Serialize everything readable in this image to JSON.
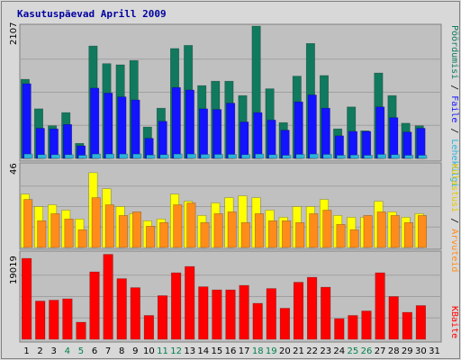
{
  "chart_data": {
    "type": "bar",
    "title": "Kasutuspäevad Aprill 2009",
    "categories": [
      "1",
      "2",
      "3",
      "4",
      "5",
      "6",
      "7",
      "8",
      "9",
      "10",
      "11",
      "12",
      "13",
      "14",
      "15",
      "16",
      "17",
      "18",
      "19",
      "20",
      "21",
      "22",
      "23",
      "24",
      "25",
      "26",
      "27",
      "28",
      "29",
      "30",
      "31"
    ],
    "weekend_days": [
      "4",
      "5",
      "11",
      "12",
      "18",
      "19",
      "25",
      "26"
    ],
    "ranges": {
      "top_max": 2107,
      "middle_max": 46,
      "bottom_max": 19019
    },
    "panels": [
      {
        "id": "top",
        "ymax_label": "2107",
        "ylim": [
          0,
          2107
        ],
        "series": [
          {
            "name": "Pöördumisi",
            "color": "#11795d",
            "values": [
              1260,
              790,
              520,
              730,
              240,
              1790,
              1510,
              1490,
              1560,
              500,
              800,
              1750,
              1800,
              1160,
              1230,
              1230,
              1000,
              2107,
              1110,
              570,
              1310,
              1830,
              1320,
              470,
              820,
              440,
              1360,
              1000,
              560,
              520,
              0
            ]
          },
          {
            "name": "Faile",
            "color": "#1313ff",
            "values": [
              1190,
              480,
              470,
              540,
              200,
              1120,
              1040,
              980,
              930,
              320,
              590,
              1130,
              1090,
              790,
              780,
              880,
              580,
              730,
              610,
              450,
              900,
              1010,
              800,
              360,
              430,
              430,
              820,
              650,
              420,
              480,
              0
            ]
          },
          {
            "name": "Lehekülgi",
            "color": "#2db3db",
            "values": [
              70,
              60,
              60,
              60,
              50,
              70,
              70,
              70,
              70,
              55,
              60,
              70,
              70,
              65,
              65,
              65,
              60,
              70,
              60,
              50,
              65,
              70,
              65,
              50,
              55,
              50,
              65,
              60,
              50,
              50,
              0
            ]
          }
        ]
      },
      {
        "id": "middle",
        "ymax_label": "46",
        "ylim": [
          0,
          46
        ],
        "series": [
          {
            "name": "Külastusi",
            "color": "#ffff00",
            "values": [
              30,
              23,
              24,
              21,
              16,
              42,
              33,
              23,
              19,
              15,
              16,
              30,
              26,
              18,
              25,
              28,
              29,
              28,
              21,
              17,
              23,
              23,
              27,
              18,
              17,
              17,
              26,
              20,
              17,
              19,
              0
            ]
          },
          {
            "name": "Arvuteid",
            "color": "#ff8c1a",
            "values": [
              27,
              15,
              19,
              16,
              10,
              28,
              24,
              18,
              20,
              12,
              14,
              24,
              25,
              14,
              19,
              20,
              14,
              19,
              15,
              15,
              14,
              19,
              21,
              13,
              10,
              18,
              20,
              18,
              14,
              18,
              0
            ]
          }
        ]
      },
      {
        "id": "bottom",
        "ymax_label": "19019",
        "ylim": [
          0,
          19019
        ],
        "series": [
          {
            "name": "KBaite",
            "color": "#ff0000",
            "values": [
              18000,
              8500,
              8700,
              9000,
              3800,
              15000,
              18900,
              13500,
              11500,
              5300,
              9700,
              14800,
              16200,
              11700,
              11000,
              11000,
              12000,
              8000,
              11300,
              6900,
              12700,
              13800,
              11600,
              4600,
              5300,
              6300,
              14800,
              9500,
              6000,
              7500,
              0
            ]
          }
        ]
      }
    ],
    "side_label_top": {
      "parts": [
        "Pöördumisi",
        "Faile",
        "Lehekülgi"
      ],
      "separator": " / "
    },
    "side_label_middle": {
      "parts": [
        "Külastusi",
        "Arvuteid"
      ],
      "separator": " / "
    },
    "side_label_bottom": "KBaite",
    "colors": {
      "plot_bg": "#c0c0c0",
      "page_bg": "#d8d8d8",
      "frame": "#808080",
      "title": "#0000a0",
      "weekday_tick": "#000000",
      "weekend_tick": "#00804a",
      "grid": "#a0a0a0"
    }
  }
}
